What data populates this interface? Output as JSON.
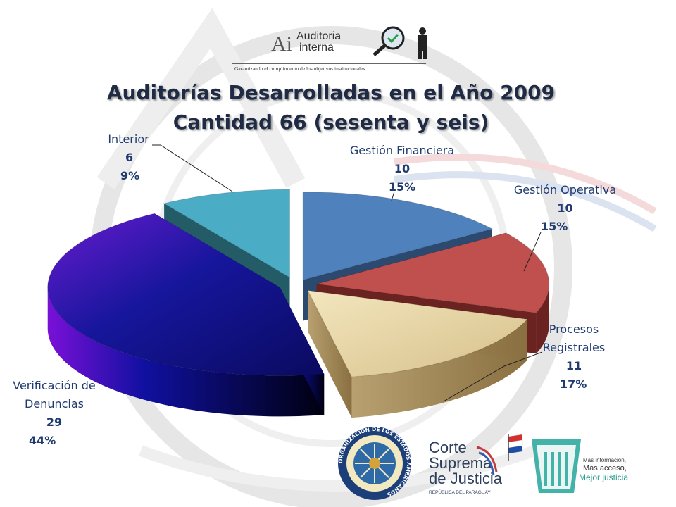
{
  "header": {
    "logo_letters": "Ai",
    "logo_line1": "Auditoria",
    "logo_line2": "interna",
    "logo_tagline": "Garantizando el cumplimiento de los objetivos institucionales"
  },
  "title_line1": "Auditorías Desarrolladas en el Año 2009",
  "title_line2": "Cantidad 66 (sesenta y seis)",
  "chart_data": {
    "type": "pie",
    "style": "3d-exploded",
    "total": 66,
    "slices": [
      {
        "label": "Gestión Financiera",
        "value": 10,
        "percent": "15%",
        "color": "#4f81bd"
      },
      {
        "label": "Gestión Operativa",
        "value": 10,
        "percent": "15%",
        "color": "#c0504d"
      },
      {
        "label": "Procesos Registrales",
        "value": 11,
        "percent": "17%",
        "color": "#e8d6a4"
      },
      {
        "label": "Verificación de Denuncias",
        "value": 29,
        "percent": "44%",
        "color": "#1e1e9e"
      },
      {
        "label": "Interior",
        "value": 6,
        "percent": "9%",
        "color": "#4bacc6"
      }
    ]
  },
  "labels": {
    "financiera": {
      "name": "Gestión Financiera",
      "value": "10",
      "pct": "15%"
    },
    "operativa": {
      "name": "Gestión Operativa",
      "value": "10",
      "pct": "15%"
    },
    "procesos_1": "Procesos",
    "procesos_2": "Registrales",
    "procesos_value": "11",
    "procesos_pct": "17%",
    "denuncias_1": "Verificación de",
    "denuncias_2": "Denuncias",
    "denuncias_value": "29",
    "denuncias_pct": "44%",
    "interior": {
      "name": "Interior",
      "value": "6",
      "pct": "9%"
    }
  },
  "footer": {
    "oas_ring_text": "ORGANIZACION DE LOS ESTADOS AMERICANOS",
    "corte_line1": "Corte",
    "corte_line2": "Suprema",
    "corte_line3": "de Justicia",
    "corte_sub": "REPÚBLICA DEL PARAGUAY",
    "mj_line1": "Más información,",
    "mj_line2": "Más acceso,",
    "mj_line3": "Mejor justicia"
  }
}
